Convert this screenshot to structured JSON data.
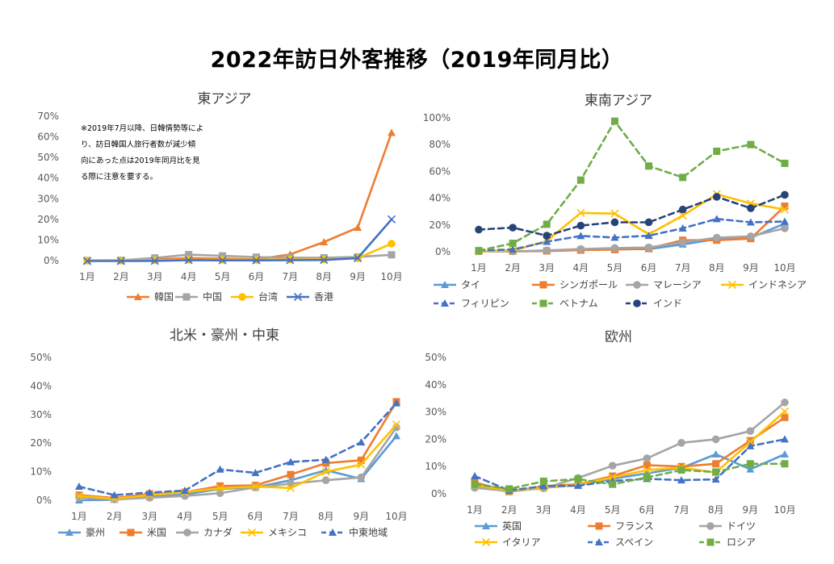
{
  "page": {
    "title": "2022年訪日外客推移（2019年同月比）"
  },
  "colors": {
    "orange": "#ED7D31",
    "gray": "#A5A5A5",
    "gold": "#FFC000",
    "blue": "#4472C4",
    "lightblue": "#5B9BD5",
    "green": "#70AD47",
    "darkblue": "#264478"
  },
  "chart_data": [
    {
      "id": "east-asia",
      "type": "line",
      "title": "東アジア",
      "categories": [
        "1月",
        "2月",
        "3月",
        "4月",
        "5月",
        "6月",
        "7月",
        "8月",
        "9月",
        "10月"
      ],
      "ylim": [
        0,
        70
      ],
      "yticks": [
        "0%",
        "10%",
        "20%",
        "30%",
        "40%",
        "50%",
        "60%",
        "70%"
      ],
      "legend_position": "bottom",
      "note": [
        "※2019年7月以降、日韓情勢等によ",
        "り、訪日韓国人旅行者数が減少傾",
        "向にあった点は2019年同月比を見",
        "る際に注意を要する。"
      ],
      "series": [
        {
          "name": "韓国",
          "color": "#ED7D31",
          "marker": "triangle",
          "dash": false,
          "values": [
            0,
            0,
            0.6,
            1.2,
            1,
            0.6,
            3,
            9,
            16,
            62
          ]
        },
        {
          "name": "中国",
          "color": "#A5A5A5",
          "marker": "square",
          "dash": false,
          "values": [
            0.1,
            0.2,
            1.3,
            2.9,
            2.3,
            1.7,
            1.4,
            1.4,
            1.8,
            2.8
          ]
        },
        {
          "name": "台湾",
          "color": "#FFC000",
          "marker": "circle",
          "dash": false,
          "values": [
            0,
            0,
            0.2,
            0.4,
            0.4,
            0.4,
            0.5,
            0.6,
            1.2,
            8.2
          ]
        },
        {
          "name": "香港",
          "color": "#4472C4",
          "marker": "x",
          "dash": false,
          "values": [
            -0.2,
            -0.2,
            -0.1,
            0.2,
            0.1,
            0.1,
            0.2,
            0.3,
            1.2,
            20
          ]
        }
      ]
    },
    {
      "id": "southeast-asia",
      "type": "line",
      "title": "東南アジア",
      "categories": [
        "1月",
        "2月",
        "3月",
        "4月",
        "5月",
        "6月",
        "7月",
        "8月",
        "9月",
        "10月"
      ],
      "ylim": [
        0,
        100
      ],
      "yticks": [
        "0%",
        "20%",
        "40%",
        "60%",
        "80%",
        "100%"
      ],
      "legend_position": "bottom",
      "series": [
        {
          "name": "タイ",
          "color": "#5B9BD5",
          "marker": "triangle",
          "dash": false,
          "values": [
            0.3,
            0.3,
            0.5,
            1.3,
            1.8,
            2,
            5.5,
            9.5,
            10.5,
            21
          ]
        },
        {
          "name": "シンガポール",
          "color": "#ED7D31",
          "marker": "square",
          "dash": false,
          "values": [
            0.3,
            0.3,
            0.6,
            1.2,
            1.6,
            2.4,
            8.6,
            8.6,
            9.8,
            34
          ]
        },
        {
          "name": "マレーシア",
          "color": "#A5A5A5",
          "marker": "circle",
          "dash": false,
          "values": [
            0.3,
            0.3,
            1,
            2,
            2.8,
            3.2,
            7,
            10.5,
            11.5,
            17.5
          ]
        },
        {
          "name": "インドネシア",
          "color": "#FFC000",
          "marker": "x",
          "dash": false,
          "values": [
            0.5,
            0.8,
            8,
            29,
            28.5,
            13,
            27,
            43,
            36,
            31.5
          ]
        },
        {
          "name": "フィリピン",
          "color": "#4472C4",
          "marker": "triangle",
          "dash": true,
          "values": [
            1,
            1.6,
            7.5,
            11.8,
            10.6,
            12,
            17.5,
            24.5,
            22,
            22.5
          ]
        },
        {
          "name": "ベトナム",
          "color": "#70AD47",
          "marker": "square",
          "dash": true,
          "values": [
            0.8,
            6.3,
            20.5,
            53.5,
            97.5,
            64,
            55.5,
            75,
            80,
            66
          ]
        },
        {
          "name": "インド",
          "color": "#264478",
          "marker": "circle",
          "dash": true,
          "values": [
            16.5,
            18,
            12,
            19.5,
            22,
            22,
            31.5,
            41,
            32.5,
            42.5
          ]
        }
      ]
    },
    {
      "id": "na-au-me",
      "type": "line",
      "title": "北米・豪州・中東",
      "categories": [
        "1月",
        "2月",
        "3月",
        "4月",
        "5月",
        "6月",
        "7月",
        "8月",
        "9月",
        "10月"
      ],
      "ylim": [
        0,
        50
      ],
      "yticks": [
        "0%",
        "10%",
        "20%",
        "30%",
        "40%",
        "50%"
      ],
      "legend_position": "bottom",
      "series": [
        {
          "name": "豪州",
          "color": "#5B9BD5",
          "marker": "triangle",
          "dash": false,
          "values": [
            0,
            0.2,
            1.2,
            2,
            4,
            4.5,
            7,
            10.5,
            7.5,
            22.5
          ]
        },
        {
          "name": "米国",
          "color": "#ED7D31",
          "marker": "square",
          "dash": false,
          "values": [
            1.8,
            0.8,
            2.2,
            2.8,
            5,
            5.2,
            9,
            13,
            14,
            34.5
          ]
        },
        {
          "name": "カナダ",
          "color": "#A5A5A5",
          "marker": "circle",
          "dash": false,
          "values": [
            1,
            0.3,
            0.9,
            1.5,
            2.5,
            4.5,
            5.8,
            7,
            8,
            25.5
          ]
        },
        {
          "name": "メキシコ",
          "color": "#FFC000",
          "marker": "x",
          "dash": false,
          "values": [
            1.5,
            0.5,
            1.8,
            2.8,
            4.2,
            4.8,
            4.3,
            10,
            12.5,
            26.5
          ]
        },
        {
          "name": "中東地域",
          "color": "#4472C4",
          "marker": "triangle",
          "dash": true,
          "values": [
            4.8,
            1.8,
            2.7,
            3.4,
            10.8,
            9.6,
            13.4,
            14.2,
            20.3,
            34
          ]
        }
      ]
    },
    {
      "id": "europe",
      "type": "line",
      "title": "欧州",
      "categories": [
        "1月",
        "2月",
        "3月",
        "4月",
        "5月",
        "6月",
        "7月",
        "8月",
        "9月",
        "10月"
      ],
      "ylim": [
        0,
        50
      ],
      "yticks": [
        "0%",
        "10%",
        "20%",
        "30%",
        "40%",
        "50%"
      ],
      "legend_position": "bottom",
      "series": [
        {
          "name": "英国",
          "color": "#5B9BD5",
          "marker": "triangle",
          "dash": false,
          "values": [
            2.8,
            0.8,
            2.2,
            3.2,
            5.5,
            7.5,
            9.5,
            14.5,
            9,
            14.5
          ]
        },
        {
          "name": "フランス",
          "color": "#ED7D31",
          "marker": "square",
          "dash": false,
          "values": [
            4.2,
            0.8,
            2.8,
            3.5,
            6.5,
            10.5,
            10,
            11,
            19.5,
            28
          ]
        },
        {
          "name": "ドイツ",
          "color": "#A5A5A5",
          "marker": "circle",
          "dash": false,
          "values": [
            2.2,
            1,
            2,
            5.8,
            10.3,
            13,
            18.7,
            20,
            23,
            33.5
          ]
        },
        {
          "name": "イタリア",
          "color": "#FFC000",
          "marker": "x",
          "dash": false,
          "values": [
            3.2,
            1.2,
            2.3,
            3.3,
            6,
            8.7,
            9.6,
            7.8,
            19,
            30.2
          ]
        },
        {
          "name": "スペイン",
          "color": "#4472C4",
          "marker": "triangle",
          "dash": true,
          "values": [
            6.5,
            1.2,
            2.8,
            3,
            4.7,
            5.5,
            5,
            5.3,
            17.5,
            20
          ]
        },
        {
          "name": "ロシア",
          "color": "#70AD47",
          "marker": "square",
          "dash": true,
          "values": [
            3.5,
            1.8,
            4.6,
            5.4,
            3.5,
            6,
            8.7,
            8,
            11,
            11
          ]
        }
      ]
    }
  ]
}
